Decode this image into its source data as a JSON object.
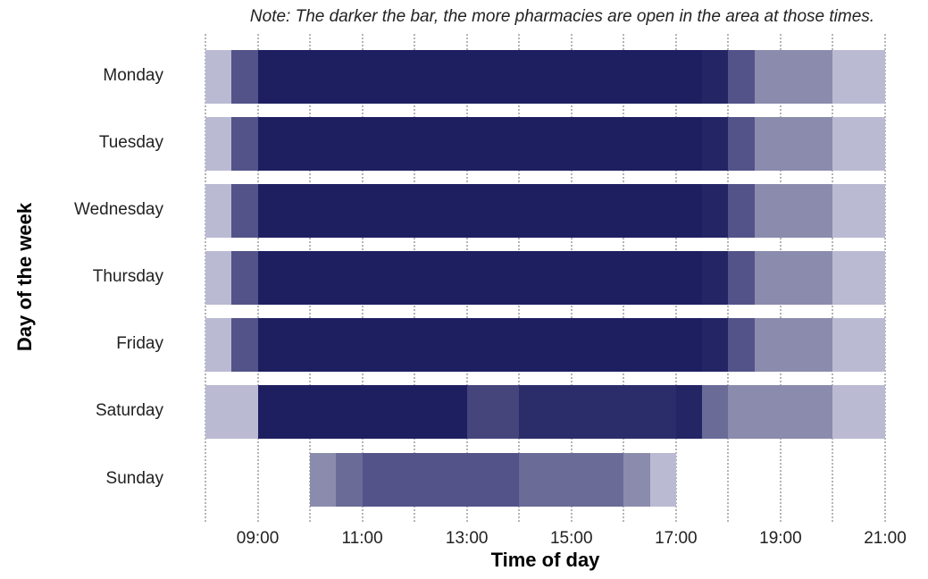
{
  "note": "Note: The darker the bar, the more pharmacies are open in the area at those times.",
  "axes": {
    "xlabel": "Time of day",
    "ylabel": "Day of the week"
  },
  "colors": {
    "level1": "#babad3",
    "level2": "#8b8bad",
    "level3": "#6b6b98",
    "level4": "#53538a",
    "level5": "#45457c",
    "level6": "#2b2d6b",
    "level7": "#232565",
    "level8": "#1e1f61"
  },
  "chart_data": {
    "type": "heatmap",
    "title": "Note: The darker the bar, the more pharmacies are open in the area at those times.",
    "xlabel": "Time of day",
    "ylabel": "Day of the week",
    "x_range": [
      "08:00",
      "21:00"
    ],
    "x_ticks": [
      "09:00",
      "11:00",
      "13:00",
      "15:00",
      "17:00",
      "19:00",
      "21:00"
    ],
    "grid": "vertical dotted lines every hour",
    "legend": "none (shade intensity = number of open pharmacies)",
    "categories": [
      "Monday",
      "Tuesday",
      "Wednesday",
      "Thursday",
      "Friday",
      "Saturday",
      "Sunday"
    ],
    "series": [
      {
        "name": "Monday",
        "segments": [
          {
            "start": 8.0,
            "end": 8.5,
            "level": 1
          },
          {
            "start": 8.5,
            "end": 9.0,
            "level": 4
          },
          {
            "start": 9.0,
            "end": 17.5,
            "level": 8
          },
          {
            "start": 17.5,
            "end": 18.0,
            "level": 7
          },
          {
            "start": 18.0,
            "end": 18.5,
            "level": 4
          },
          {
            "start": 18.5,
            "end": 20.0,
            "level": 2
          },
          {
            "start": 20.0,
            "end": 21.0,
            "level": 1
          }
        ]
      },
      {
        "name": "Tuesday",
        "segments": [
          {
            "start": 8.0,
            "end": 8.5,
            "level": 1
          },
          {
            "start": 8.5,
            "end": 9.0,
            "level": 4
          },
          {
            "start": 9.0,
            "end": 17.5,
            "level": 8
          },
          {
            "start": 17.5,
            "end": 18.0,
            "level": 7
          },
          {
            "start": 18.0,
            "end": 18.5,
            "level": 4
          },
          {
            "start": 18.5,
            "end": 20.0,
            "level": 2
          },
          {
            "start": 20.0,
            "end": 21.0,
            "level": 1
          }
        ]
      },
      {
        "name": "Wednesday",
        "segments": [
          {
            "start": 8.0,
            "end": 8.5,
            "level": 1
          },
          {
            "start": 8.5,
            "end": 9.0,
            "level": 4
          },
          {
            "start": 9.0,
            "end": 17.5,
            "level": 8
          },
          {
            "start": 17.5,
            "end": 18.0,
            "level": 7
          },
          {
            "start": 18.0,
            "end": 18.5,
            "level": 4
          },
          {
            "start": 18.5,
            "end": 20.0,
            "level": 2
          },
          {
            "start": 20.0,
            "end": 21.0,
            "level": 1
          }
        ]
      },
      {
        "name": "Thursday",
        "segments": [
          {
            "start": 8.0,
            "end": 8.5,
            "level": 1
          },
          {
            "start": 8.5,
            "end": 9.0,
            "level": 4
          },
          {
            "start": 9.0,
            "end": 17.5,
            "level": 8
          },
          {
            "start": 17.5,
            "end": 18.0,
            "level": 7
          },
          {
            "start": 18.0,
            "end": 18.5,
            "level": 4
          },
          {
            "start": 18.5,
            "end": 20.0,
            "level": 2
          },
          {
            "start": 20.0,
            "end": 21.0,
            "level": 1
          }
        ]
      },
      {
        "name": "Friday",
        "segments": [
          {
            "start": 8.0,
            "end": 8.5,
            "level": 1
          },
          {
            "start": 8.5,
            "end": 9.0,
            "level": 4
          },
          {
            "start": 9.0,
            "end": 17.5,
            "level": 8
          },
          {
            "start": 17.5,
            "end": 18.0,
            "level": 7
          },
          {
            "start": 18.0,
            "end": 18.5,
            "level": 4
          },
          {
            "start": 18.5,
            "end": 20.0,
            "level": 2
          },
          {
            "start": 20.0,
            "end": 21.0,
            "level": 1
          }
        ]
      },
      {
        "name": "Saturday",
        "segments": [
          {
            "start": 8.0,
            "end": 9.0,
            "level": 1
          },
          {
            "start": 9.0,
            "end": 13.0,
            "level": 8
          },
          {
            "start": 13.0,
            "end": 14.0,
            "level": 5
          },
          {
            "start": 14.0,
            "end": 17.0,
            "level": 6
          },
          {
            "start": 17.0,
            "end": 17.5,
            "level": 7
          },
          {
            "start": 17.5,
            "end": 18.0,
            "level": 3
          },
          {
            "start": 18.0,
            "end": 20.0,
            "level": 2
          },
          {
            "start": 20.0,
            "end": 21.0,
            "level": 1
          }
        ]
      },
      {
        "name": "Sunday",
        "segments": [
          {
            "start": 10.0,
            "end": 10.5,
            "level": 2
          },
          {
            "start": 10.5,
            "end": 11.0,
            "level": 3
          },
          {
            "start": 11.0,
            "end": 14.0,
            "level": 4
          },
          {
            "start": 14.0,
            "end": 16.0,
            "level": 3
          },
          {
            "start": 16.0,
            "end": 16.5,
            "level": 2
          },
          {
            "start": 16.5,
            "end": 17.0,
            "level": 1
          }
        ]
      }
    ]
  }
}
